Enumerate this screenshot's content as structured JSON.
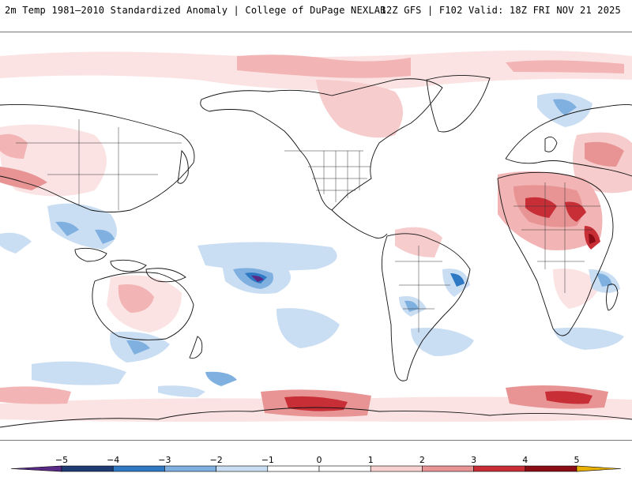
{
  "header": {
    "title_left": "2m Temp 1981–2010 Standardized Anomaly | College of DuPage NEXLAB",
    "title_right": "12Z GFS | F102 Valid: 18Z FRI NOV 21 2025"
  },
  "legend": {
    "ticks": [
      "−5",
      "−4",
      "−3",
      "−2",
      "−1",
      "0",
      "1",
      "2",
      "3",
      "4",
      "5"
    ],
    "colors": [
      "#5a2a87",
      "#1f3b73",
      "#2f78c4",
      "#7fb0e0",
      "#c9ddf3",
      "#ffffff",
      "#ffffff",
      "#f7d0d0",
      "#e89494",
      "#c72e36",
      "#8a0d16",
      "#e8b000"
    ]
  },
  "map": {
    "projection": "Pacific-centered global lat-lon",
    "layers": [
      "2m temperature standardized anomaly shading",
      "coastlines",
      "country borders",
      "US state borders"
    ]
  }
}
